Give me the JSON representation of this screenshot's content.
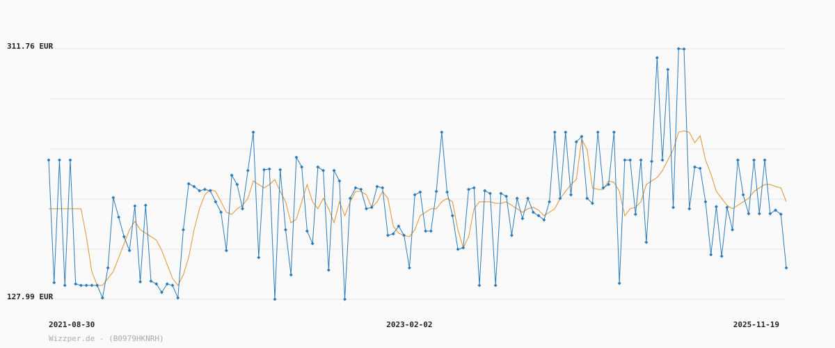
{
  "chart_data": {
    "type": "line",
    "footer": "Wizzper.de - (B0979HKNRH)",
    "categories": [
      "2021-08-30",
      null,
      null,
      null,
      null,
      null,
      null,
      null,
      null,
      null,
      null,
      null,
      null,
      null,
      null,
      null,
      null,
      null,
      null,
      null,
      null,
      null,
      null,
      null,
      null,
      null,
      null,
      null,
      null,
      null,
      null,
      null,
      null,
      null,
      null,
      null,
      null,
      null,
      null,
      null,
      null,
      null,
      null,
      null,
      null,
      null,
      null,
      null,
      null,
      null,
      null,
      null,
      null,
      null,
      null,
      null,
      null,
      null,
      null,
      null,
      null,
      null,
      null,
      null,
      null,
      null,
      null,
      "2023-02-02",
      null,
      null,
      null,
      null,
      null,
      null,
      null,
      null,
      null,
      null,
      null,
      null,
      null,
      null,
      null,
      null,
      null,
      null,
      null,
      null,
      null,
      null,
      null,
      null,
      null,
      null,
      null,
      null,
      null,
      null,
      null,
      null,
      null,
      null,
      null,
      null,
      null,
      null,
      null,
      null,
      null,
      null,
      null,
      null,
      null,
      null,
      null,
      null,
      null,
      null,
      null,
      null,
      null,
      null,
      null,
      null,
      null,
      null,
      null,
      null,
      null,
      null,
      null,
      null,
      null,
      null,
      null,
      null,
      null,
      "2025-11-19"
    ],
    "series": [
      {
        "color": "#2a7ab8",
        "markers": true,
        "values": [
          230.1,
          140.2,
          230.1,
          138.2,
          230.1,
          139.2,
          138.2,
          138.2,
          138.2,
          138.2,
          129.0,
          151.0,
          202.5,
          188.2,
          173.9,
          163.7,
          196.4,
          140.8,
          196.9,
          141.3,
          139.2,
          133.1,
          139.2,
          138.2,
          129.0,
          179.0,
          212.7,
          210.7,
          207.6,
          208.6,
          207.6,
          199.5,
          191.8,
          163.7,
          218.9,
          212.2,
          194.4,
          222.4,
          250.5,
          158.6,
          223.0,
          223.5,
          128.0,
          223.0,
          179.0,
          145.9,
          232.1,
          225.0,
          178.0,
          168.8,
          225.0,
          222.4,
          149.4,
          222.4,
          214.8,
          128.0,
          202.0,
          209.7,
          208.6,
          194.4,
          195.4,
          210.7,
          209.7,
          174.9,
          176.0,
          181.6,
          174.9,
          151.0,
          204.6,
          206.6,
          178.0,
          178.0,
          207.1,
          250.5,
          206.6,
          189.3,
          164.7,
          165.8,
          208.6,
          209.7,
          138.2,
          207.6,
          205.6,
          138.2,
          205.6,
          203.5,
          174.9,
          202.0,
          187.2,
          202.0,
          191.8,
          189.3,
          186.2,
          199.5,
          250.5,
          202.0,
          250.5,
          204.6,
          243.4,
          247.4,
          202.0,
          198.4,
          250.5,
          209.7,
          212.2,
          250.5,
          139.7,
          230.1,
          230.1,
          190.3,
          230.1,
          169.8,
          229.1,
          305.1,
          230.1,
          296.5,
          195.4,
          311.76,
          311.5,
          194.4,
          225.0,
          224.0,
          199.5,
          160.7,
          195.9,
          159.6,
          195.4,
          179.0,
          230.1,
          204.6,
          190.8,
          230.1,
          190.8,
          230.1,
          190.8,
          193.3,
          190.3,
          151.0
        ]
      },
      {
        "color": "#e0912f",
        "markers": false,
        "values": [
          194.4,
          194.4,
          194.4,
          194.4,
          194.4,
          194.4,
          194.4,
          173.9,
          148.4,
          138.2,
          138.2,
          143.3,
          148.4,
          158.6,
          168.8,
          179.0,
          185.2,
          179.0,
          176.5,
          173.9,
          171.4,
          163.7,
          153.5,
          143.3,
          138.2,
          145.9,
          158.6,
          179.0,
          194.4,
          204.6,
          208.6,
          207.1,
          199.5,
          191.8,
          190.3,
          194.4,
          196.9,
          202.0,
          214.8,
          212.2,
          209.7,
          212.2,
          215.8,
          207.1,
          199.5,
          184.1,
          186.7,
          199.5,
          212.2,
          199.5,
          194.4,
          202.0,
          194.4,
          184.1,
          199.5,
          189.3,
          199.5,
          207.1,
          207.1,
          204.6,
          195.4,
          199.5,
          207.1,
          202.0,
          181.6,
          176.5,
          174.9,
          173.9,
          179.0,
          189.3,
          191.8,
          194.4,
          194.4,
          199.5,
          202.0,
          199.5,
          179.0,
          165.8,
          173.9,
          194.4,
          199.5,
          199.5,
          199.5,
          198.4,
          198.4,
          199.5,
          196.9,
          194.4,
          191.8,
          194.4,
          195.4,
          193.3,
          189.3,
          191.8,
          194.4,
          202.0,
          207.1,
          212.2,
          215.8,
          245.4,
          237.8,
          209.7,
          208.6,
          208.6,
          214.8,
          213.7,
          207.1,
          189.3,
          194.4,
          195.4,
          199.5,
          212.2,
          214.8,
          217.3,
          222.4,
          230.1,
          237.8,
          250.5,
          251.5,
          250.5,
          242.8,
          247.9,
          230.1,
          219.9,
          207.1,
          202.0,
          196.9,
          194.4,
          196.9,
          199.5,
          202.0,
          207.1,
          209.7,
          212.2,
          212.2,
          210.7,
          209.7,
          199.5
        ]
      }
    ],
    "ylim": [
      127.99,
      311.76
    ],
    "yticks": [
      {
        "value": 127.99,
        "label": "127.99 EUR"
      },
      {
        "value": 164.74,
        "label": null
      },
      {
        "value": 201.5,
        "label": null
      },
      {
        "value": 238.25,
        "label": null
      },
      {
        "value": 275.01,
        "label": null
      },
      {
        "value": 311.76,
        "label": "311.76 EUR"
      }
    ],
    "grid": true
  }
}
